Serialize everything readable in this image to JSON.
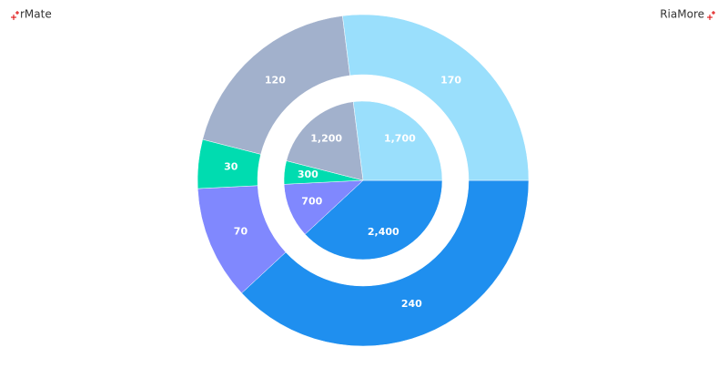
{
  "watermarks": [
    "rMate",
    "RiaMore"
  ],
  "chart_data": {
    "type": "donut",
    "colors": [
      "#1f8fef",
      "#8088fe",
      "#00dcb0",
      "#a2b1cc",
      "#9adffc"
    ],
    "series": [
      {
        "values": [
          2400,
          700,
          300,
          1200,
          1700
        ],
        "value_labels": [
          "2,400",
          "700",
          "300",
          "1,200",
          "1,700"
        ]
      },
      {
        "values": [
          240,
          70,
          30,
          120,
          170
        ]
      }
    ]
  }
}
